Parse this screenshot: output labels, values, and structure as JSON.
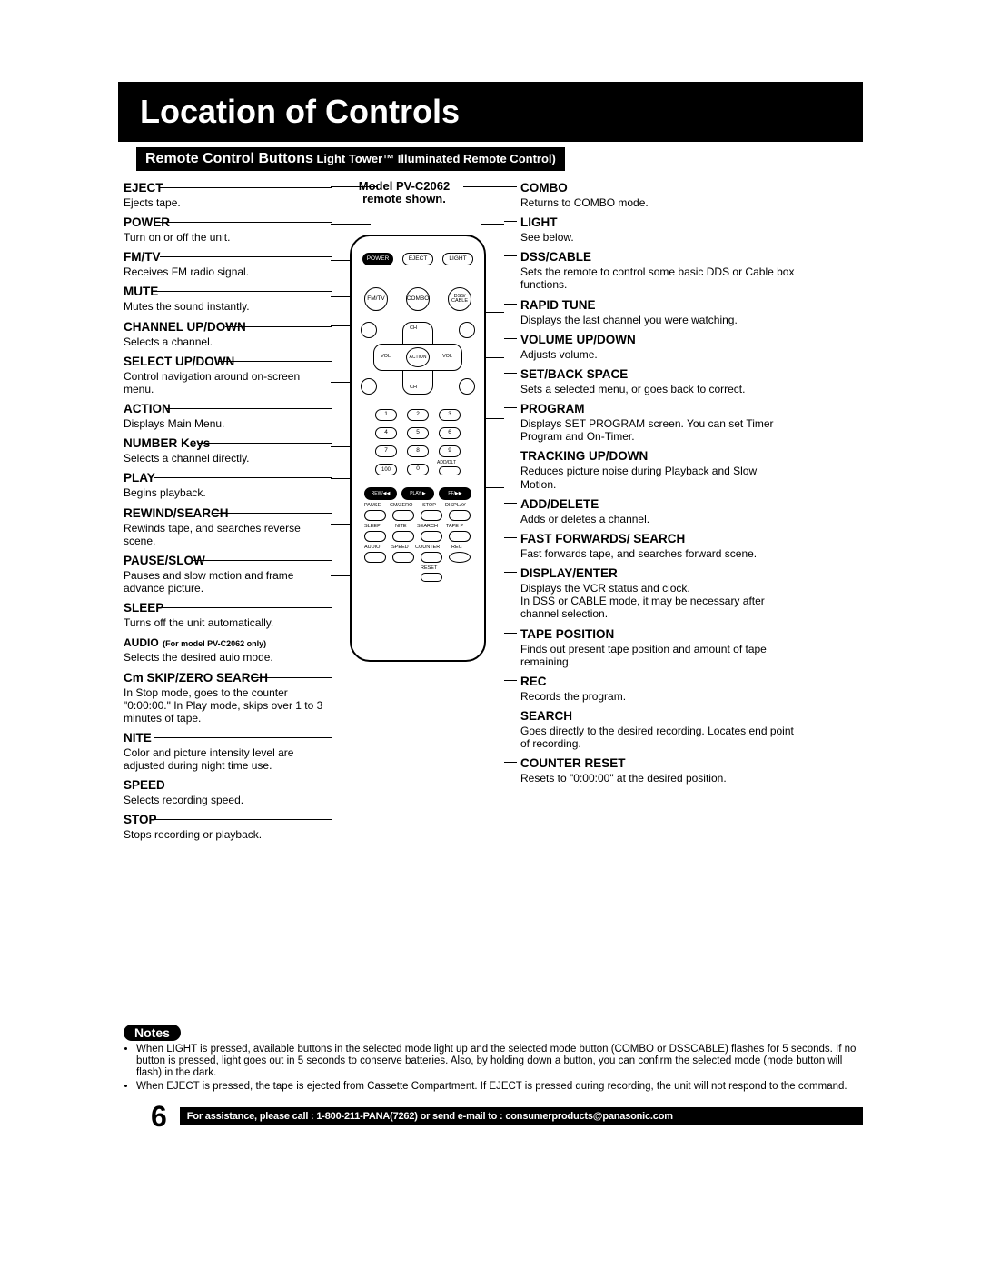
{
  "page": {
    "title": "Location of Controls",
    "subtitle_bold": "Remote Control Buttons",
    "subtitle_rest": " Light Tower™ Illuminated Remote Control)",
    "page_number": "6",
    "footer": "For assistance, please call : 1-800-211-PANA(7262) or send e-mail to : consumerproducts@panasonic.com"
  },
  "model_note_line1": "Model PV-C2062",
  "model_note_line2": "remote shown.",
  "left": [
    {
      "title": "EJECT",
      "desc": "Ejects tape."
    },
    {
      "title": "POWER",
      "desc": "Turn on or off the unit."
    },
    {
      "title": "FM/TV",
      "desc": "Receives FM radio signal."
    },
    {
      "title": "MUTE",
      "desc": "Mutes the sound instantly."
    },
    {
      "title": "CHANNEL UP/DOWN",
      "desc": "Selects a channel."
    },
    {
      "title": "SELECT UP/DOWN",
      "desc": "Control navigation around on-screen menu."
    },
    {
      "title": "ACTION",
      "desc": "Displays Main Menu."
    },
    {
      "title": "NUMBER Keys",
      "desc": "Selects a channel directly."
    },
    {
      "title": "PLAY",
      "desc": "Begins playback."
    },
    {
      "title": "REWIND/SEARCH",
      "desc": "Rewinds tape, and searches reverse scene."
    },
    {
      "title": "PAUSE/SLOW",
      "desc": "Pauses and slow motion and frame advance picture."
    },
    {
      "title": "SLEEP",
      "desc": "Turns off the unit automatically."
    },
    {
      "title": "AUDIO (For model PV-C2062 only)",
      "desc": "Selects the desired auio mode."
    },
    {
      "title": "Cm SKIP/ZERO SEARCH",
      "desc": "In Stop mode, goes to the counter \"0:00:00.\" In Play mode, skips over 1 to 3 minutes of tape."
    },
    {
      "title": "NITE",
      "desc": "Color and picture intensity level are adjusted during night time use."
    },
    {
      "title": "SPEED",
      "desc": "Selects recording speed."
    },
    {
      "title": "STOP",
      "desc": "Stops recording or playback."
    }
  ],
  "right": [
    {
      "title": "COMBO",
      "desc": "Returns to COMBO mode."
    },
    {
      "title": "LIGHT",
      "desc": "See below."
    },
    {
      "title": "DSS/CABLE",
      "desc": "Sets the remote to control some basic DDS or Cable box functions."
    },
    {
      "title": "RAPID TUNE",
      "desc": "Displays the last channel you were watching."
    },
    {
      "title": "VOLUME UP/DOWN",
      "desc": "Adjusts volume."
    },
    {
      "title": "SET/BACK SPACE",
      "desc": "Sets a selected menu, or goes back to correct."
    },
    {
      "title": "PROGRAM",
      "desc": "Displays SET PROGRAM screen. You can set Timer Program and On-Timer."
    },
    {
      "title": "TRACKING UP/DOWN",
      "desc": "Reduces picture noise during Playback and Slow Motion."
    },
    {
      "title": "ADD/DELETE",
      "desc": "Adds or deletes a channel."
    },
    {
      "title": "FAST FORWARDS/ SEARCH",
      "desc": "Fast forwards tape, and searches forward scene."
    },
    {
      "title": "DISPLAY/ENTER",
      "desc": "Displays the VCR status and clock.\nIn DSS or CABLE mode, it may be necessary after channel selection."
    },
    {
      "title": "TAPE POSITION",
      "desc": "Finds out present tape position and amount of tape remaining."
    },
    {
      "title": "REC",
      "desc": "Records the program."
    },
    {
      "title": "SEARCH",
      "desc": "Goes directly to the desired recording. Locates end point of recording."
    },
    {
      "title": "COUNTER RESET",
      "desc": "Resets to \"0:00:00\" at the desired position."
    }
  ],
  "notes_label": "Notes",
  "notes": [
    "When LIGHT is pressed, available buttons in the selected mode light up and the selected mode button (COMBO or DSSCABLE) flashes for 5 seconds. If no button is pressed, light goes out in 5 seconds to conserve batteries. Also, by holding down a button, you can confirm the selected mode (mode button will flash) in the dark.",
    "When EJECT is pressed, the tape is ejected from Cassette Compartment. If EJECT is pressed during recording, the unit will not respond to the command."
  ],
  "remote_buttons": {
    "power": "POWER",
    "eject": "EJECT",
    "light": "LIGHT",
    "fmtv": "FM/TV",
    "combo": "COMBO",
    "dss": "DSS/\nCABLE",
    "ch": "CH",
    "vol": "VOL",
    "action": "ACTION",
    "n1": "1",
    "n2": "2",
    "n3": "3",
    "n4": "4",
    "n5": "5",
    "n6": "6",
    "n7": "7",
    "n8": "8",
    "n9": "9",
    "n0": "0",
    "n100": "100",
    "adddlt": "ADD/DLT",
    "rew": "REW/◀◀",
    "play": "PLAY ▶",
    "ff": "FF/▶▶",
    "pause": "PAUSE",
    "cmzero": "CM/ZERO",
    "stop": "STOP",
    "display": "DISPLAY",
    "sleep": "SLEEP",
    "nite": "NITE",
    "search": "SEARCH",
    "tapep": "TAPE P",
    "audio": "AUDIO",
    "speed": "SPEED",
    "counter": "COUNTER",
    "rec": "REC",
    "reset": "RESET"
  },
  "colors": {
    "bg": "#ffffff",
    "fg": "#000000"
  }
}
